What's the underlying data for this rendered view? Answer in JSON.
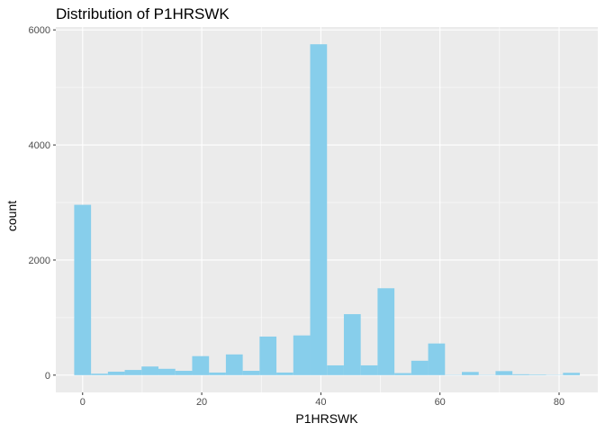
{
  "chart_data": {
    "type": "bar",
    "title": "Distribution of P1HRSWK",
    "xlabel": "P1HRSWK",
    "ylabel": "count",
    "xlim": [
      -4.5,
      86.5
    ],
    "ylim": [
      -300,
      6050
    ],
    "xticks": [
      0,
      20,
      40,
      60,
      80
    ],
    "yticks": [
      0,
      2000,
      4000,
      6000
    ],
    "grid": true,
    "bin_width": 2.83,
    "bins": [
      {
        "x": 0.0,
        "count": 2960
      },
      {
        "x": 2.83,
        "count": 25
      },
      {
        "x": 5.66,
        "count": 60
      },
      {
        "x": 8.49,
        "count": 90
      },
      {
        "x": 11.32,
        "count": 150
      },
      {
        "x": 14.15,
        "count": 110
      },
      {
        "x": 16.98,
        "count": 75
      },
      {
        "x": 19.81,
        "count": 330
      },
      {
        "x": 22.64,
        "count": 45
      },
      {
        "x": 25.47,
        "count": 360
      },
      {
        "x": 28.3,
        "count": 75
      },
      {
        "x": 31.13,
        "count": 670
      },
      {
        "x": 33.96,
        "count": 45
      },
      {
        "x": 36.79,
        "count": 690
      },
      {
        "x": 39.62,
        "count": 5750
      },
      {
        "x": 42.45,
        "count": 170
      },
      {
        "x": 45.28,
        "count": 1060
      },
      {
        "x": 48.11,
        "count": 170
      },
      {
        "x": 50.94,
        "count": 1510
      },
      {
        "x": 53.77,
        "count": 35
      },
      {
        "x": 56.6,
        "count": 250
      },
      {
        "x": 59.43,
        "count": 550
      },
      {
        "x": 62.26,
        "count": 5
      },
      {
        "x": 65.09,
        "count": 55
      },
      {
        "x": 67.92,
        "count": 5
      },
      {
        "x": 70.75,
        "count": 70
      },
      {
        "x": 73.58,
        "count": 15
      },
      {
        "x": 76.41,
        "count": 10
      },
      {
        "x": 79.24,
        "count": 5
      },
      {
        "x": 82.07,
        "count": 40
      }
    ],
    "colors": {
      "bar": "#87CEEB",
      "panel": "#EBEBEB",
      "grid_major": "#FFFFFF",
      "tick": "#333333"
    }
  }
}
